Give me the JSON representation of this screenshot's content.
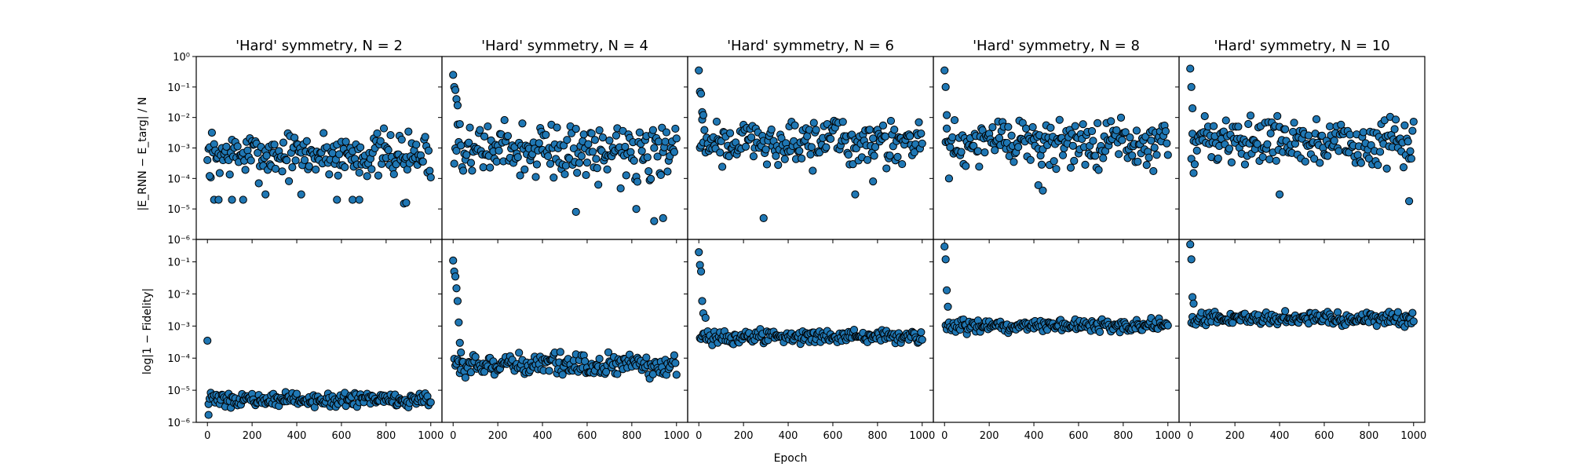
{
  "figure": {
    "xlabel": "Epoch",
    "ylabel_top": "|E_RNN − E_targ| / N",
    "ylabel_bottom": "log|1 − Fidelity|"
  },
  "chart_data": {
    "type": "scatter",
    "xlim": [
      -50,
      1050
    ],
    "x_ticks": [
      0,
      200,
      400,
      600,
      800,
      1000
    ],
    "marker_color": "#1f77b4",
    "edge_color": "#000000",
    "panels": [
      {
        "title": "'Hard' symmetry, N = 2",
        "energy": {
          "yscale": "log",
          "ylim": [
            1e-06,
            1
          ],
          "y_ticks": [
            "10⁻⁶",
            "10⁻⁵",
            "10⁻⁴",
            "10⁻³",
            "10⁻²",
            "10⁻¹",
            "10⁰"
          ],
          "base": 0.0006,
          "spread": 1.1,
          "outliers": [
            [
              0,
              0.0004
            ],
            [
              10,
              0.00012
            ],
            [
              30,
              2e-05
            ],
            [
              50,
              2e-05
            ],
            [
              110,
              2e-05
            ],
            [
              160,
              2e-05
            ],
            [
              260,
              3e-05
            ],
            [
              420,
              3e-05
            ],
            [
              580,
              2e-05
            ],
            [
              650,
              2e-05
            ],
            [
              680,
              2e-05
            ],
            [
              880,
              1.5e-05
            ],
            [
              890,
              1.6e-05
            ]
          ]
        },
        "fidelity": {
          "yscale": "log",
          "ylim": [
            1e-06,
            0.5
          ],
          "y_ticks": [
            "10⁻⁶",
            "10⁻⁵",
            "10⁻⁴",
            "10⁻³",
            "10⁻²",
            "10⁻¹"
          ],
          "base": 5e-06,
          "spread": 0.3,
          "outliers": [
            [
              0,
              0.00035
            ],
            [
              5,
              1.7e-06
            ]
          ]
        }
      },
      {
        "title": "'Hard' symmetry, N = 4",
        "energy": {
          "yscale": "log",
          "ylim": [
            1e-06,
            1
          ],
          "y_ticks": [
            "10⁻⁶",
            "10⁻⁵",
            "10⁻⁴",
            "10⁻³",
            "10⁻²",
            "10⁻¹",
            "10⁰"
          ],
          "base": 0.0008,
          "spread": 1.3,
          "outliers": [
            [
              0,
              0.25
            ],
            [
              5,
              0.1
            ],
            [
              10,
              0.08
            ],
            [
              15,
              0.04
            ],
            [
              20,
              0.025
            ],
            [
              550,
              8e-06
            ],
            [
              820,
              1e-05
            ],
            [
              900,
              4e-06
            ],
            [
              940,
              5e-06
            ]
          ]
        },
        "fidelity": {
          "yscale": "log",
          "ylim": [
            1e-06,
            0.5
          ],
          "y_ticks": [
            "10⁻⁶",
            "10⁻⁵",
            "10⁻⁴",
            "10⁻³",
            "10⁻²",
            "10⁻¹"
          ],
          "base": 6e-05,
          "spread": 0.5,
          "outliers": [
            [
              0,
              0.11
            ],
            [
              5,
              0.05
            ],
            [
              10,
              0.035
            ],
            [
              15,
              0.015
            ],
            [
              20,
              0.006
            ],
            [
              25,
              0.0013
            ],
            [
              30,
              0.0003
            ],
            [
              35,
              0.00015
            ]
          ]
        }
      },
      {
        "title": "'Hard' symmetry, N = 6",
        "energy": {
          "yscale": "log",
          "ylim": [
            1e-06,
            1
          ],
          "y_ticks": [
            "10⁻⁶",
            "10⁻⁵",
            "10⁻⁴",
            "10⁻³",
            "10⁻²",
            "10⁻¹",
            "10⁰"
          ],
          "base": 0.0015,
          "spread": 1.1,
          "outliers": [
            [
              0,
              0.35
            ],
            [
              5,
              0.07
            ],
            [
              10,
              0.06
            ],
            [
              15,
              0.015
            ],
            [
              20,
              0.012
            ],
            [
              290,
              5e-06
            ],
            [
              700,
              3e-05
            ],
            [
              780,
              8e-05
            ]
          ]
        },
        "fidelity": {
          "yscale": "log",
          "ylim": [
            1e-06,
            0.5
          ],
          "y_ticks": [
            "10⁻⁶",
            "10⁻⁵",
            "10⁻⁴",
            "10⁻³",
            "10⁻²",
            "10⁻¹"
          ],
          "base": 0.00045,
          "spread": 0.3,
          "outliers": [
            [
              0,
              0.2
            ],
            [
              5,
              0.08
            ],
            [
              10,
              0.05
            ],
            [
              15,
              0.006
            ],
            [
              20,
              0.0025
            ],
            [
              30,
              0.0018
            ]
          ]
        }
      },
      {
        "title": "'Hard' symmetry, N = 8",
        "energy": {
          "yscale": "log",
          "ylim": [
            1e-06,
            1
          ],
          "y_ticks": [
            "10⁻⁶",
            "10⁻⁵",
            "10⁻⁴",
            "10⁻³",
            "10⁻²",
            "10⁻¹",
            "10⁰"
          ],
          "base": 0.0015,
          "spread": 1.1,
          "outliers": [
            [
              0,
              0.35
            ],
            [
              5,
              0.1
            ],
            [
              10,
              0.012
            ],
            [
              20,
              0.0001
            ],
            [
              440,
              4e-05
            ],
            [
              420,
              6e-05
            ]
          ]
        },
        "fidelity": {
          "yscale": "log",
          "ylim": [
            1e-06,
            0.5
          ],
          "y_ticks": [
            "10⁻⁶",
            "10⁻⁵",
            "10⁻⁴",
            "10⁻³",
            "10⁻²",
            "10⁻¹"
          ],
          "base": 0.001,
          "spread": 0.3,
          "outliers": [
            [
              0,
              0.3
            ],
            [
              5,
              0.12
            ],
            [
              10,
              0.013
            ],
            [
              15,
              0.004
            ]
          ]
        }
      },
      {
        "title": "'Hard' symmetry, N = 10",
        "energy": {
          "yscale": "log",
          "ylim": [
            1e-06,
            1
          ],
          "y_ticks": [
            "10⁻⁶",
            "10⁻⁵",
            "10⁻⁴",
            "10⁻³",
            "10⁻²",
            "10⁻¹",
            "10⁰"
          ],
          "base": 0.0015,
          "spread": 1.1,
          "outliers": [
            [
              0,
              0.4
            ],
            [
              5,
              0.1
            ],
            [
              10,
              0.02
            ],
            [
              15,
              0.00015
            ],
            [
              400,
              3e-05
            ],
            [
              980,
              1.8e-05
            ]
          ]
        },
        "fidelity": {
          "yscale": "log",
          "ylim": [
            1e-06,
            0.5
          ],
          "y_ticks": [
            "10⁻⁶",
            "10⁻⁵",
            "10⁻⁴",
            "10⁻³",
            "10⁻²",
            "10⁻¹"
          ],
          "base": 0.0017,
          "spread": 0.3,
          "outliers": [
            [
              0,
              0.35
            ],
            [
              5,
              0.12
            ],
            [
              10,
              0.008
            ],
            [
              15,
              0.005
            ]
          ]
        }
      }
    ]
  }
}
